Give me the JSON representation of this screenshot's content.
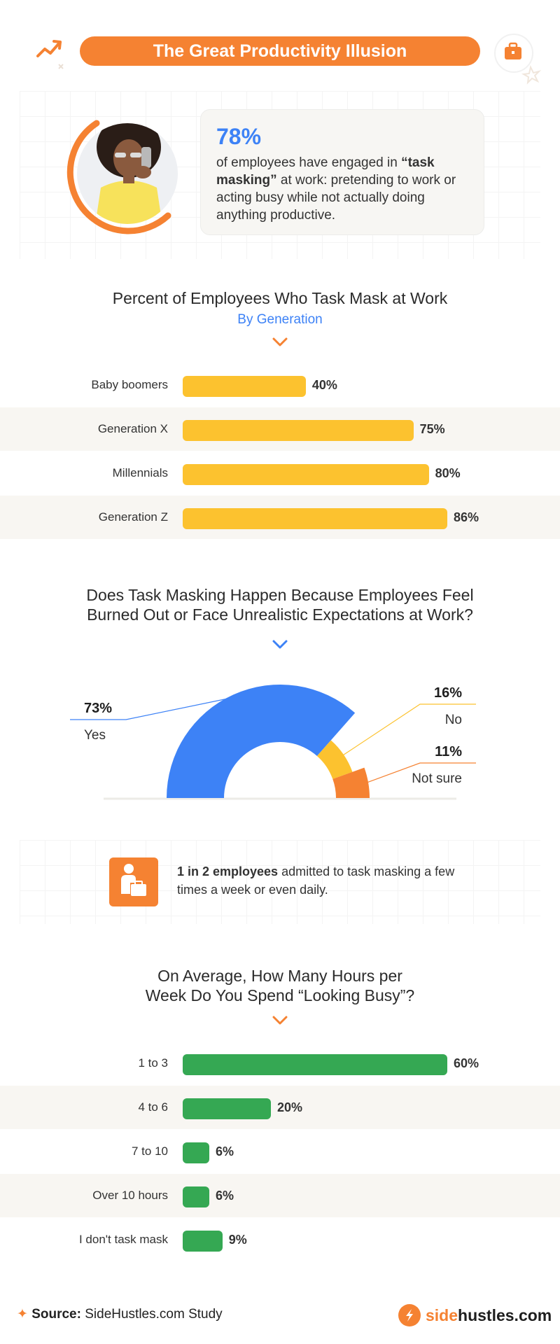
{
  "header": {
    "title": "The Great Productivity Illusion"
  },
  "stat": {
    "number": "78%",
    "text_pre": "of employees have engaged in ",
    "text_bold": "“task masking”",
    "text_post": " at work: pretending to work or acting busy while not actually doing anything productive."
  },
  "colors": {
    "orange": "#f58232",
    "blue": "#3d82f6",
    "yellow": "#fcc22f",
    "green": "#35a853"
  },
  "section1": {
    "title": "Percent of Employees Who Task Mask at Work",
    "subtitle": "By Generation"
  },
  "section2": {
    "title_line1": "Does Task Masking Happen Because Employees Feel",
    "title_line2": "Burned Out or Face Unrealistic Expectations at Work?"
  },
  "callout": {
    "bold": "1 in 2 employees",
    "rest": " admitted to task masking a few times a week or even daily."
  },
  "section3": {
    "title_line1": "On Average, How Many Hours per",
    "title_line2": "Week Do You Spend “Looking Busy”?"
  },
  "footer": {
    "source_label": "Source:",
    "source_text": " SideHustles.com Study",
    "brand_a": "side",
    "brand_b": "hustles.com"
  },
  "chart_data": [
    {
      "type": "bar",
      "title": "Percent of Employees Who Task Mask at Work",
      "subtitle": "By Generation",
      "categories": [
        "Baby boomers",
        "Generation X",
        "Millennials",
        "Generation Z"
      ],
      "values": [
        40,
        75,
        80,
        86
      ],
      "labels": [
        "40%",
        "75%",
        "80%",
        "86%"
      ],
      "color": "#fcc22f",
      "max": 86
    },
    {
      "type": "pie",
      "title": "Does Task Masking Happen Because Employees Feel Burned Out or Face Unrealistic Expectations at Work?",
      "categories": [
        "Yes",
        "No",
        "Not sure"
      ],
      "values": [
        73,
        16,
        11
      ],
      "labels": [
        "73%",
        "16%",
        "11%"
      ],
      "colors": [
        "#3d82f6",
        "#fcc22f",
        "#f58232"
      ]
    },
    {
      "type": "bar",
      "title": "On Average, How Many Hours per Week Do You Spend “Looking Busy”?",
      "categories": [
        "1 to 3",
        "4 to 6",
        "7 to 10",
        "Over 10 hours",
        "I don't task mask"
      ],
      "values": [
        60,
        20,
        6,
        6,
        9
      ],
      "labels": [
        "60%",
        "20%",
        "6%",
        "6%",
        "9%"
      ],
      "color": "#35a853",
      "max": 60
    }
  ]
}
